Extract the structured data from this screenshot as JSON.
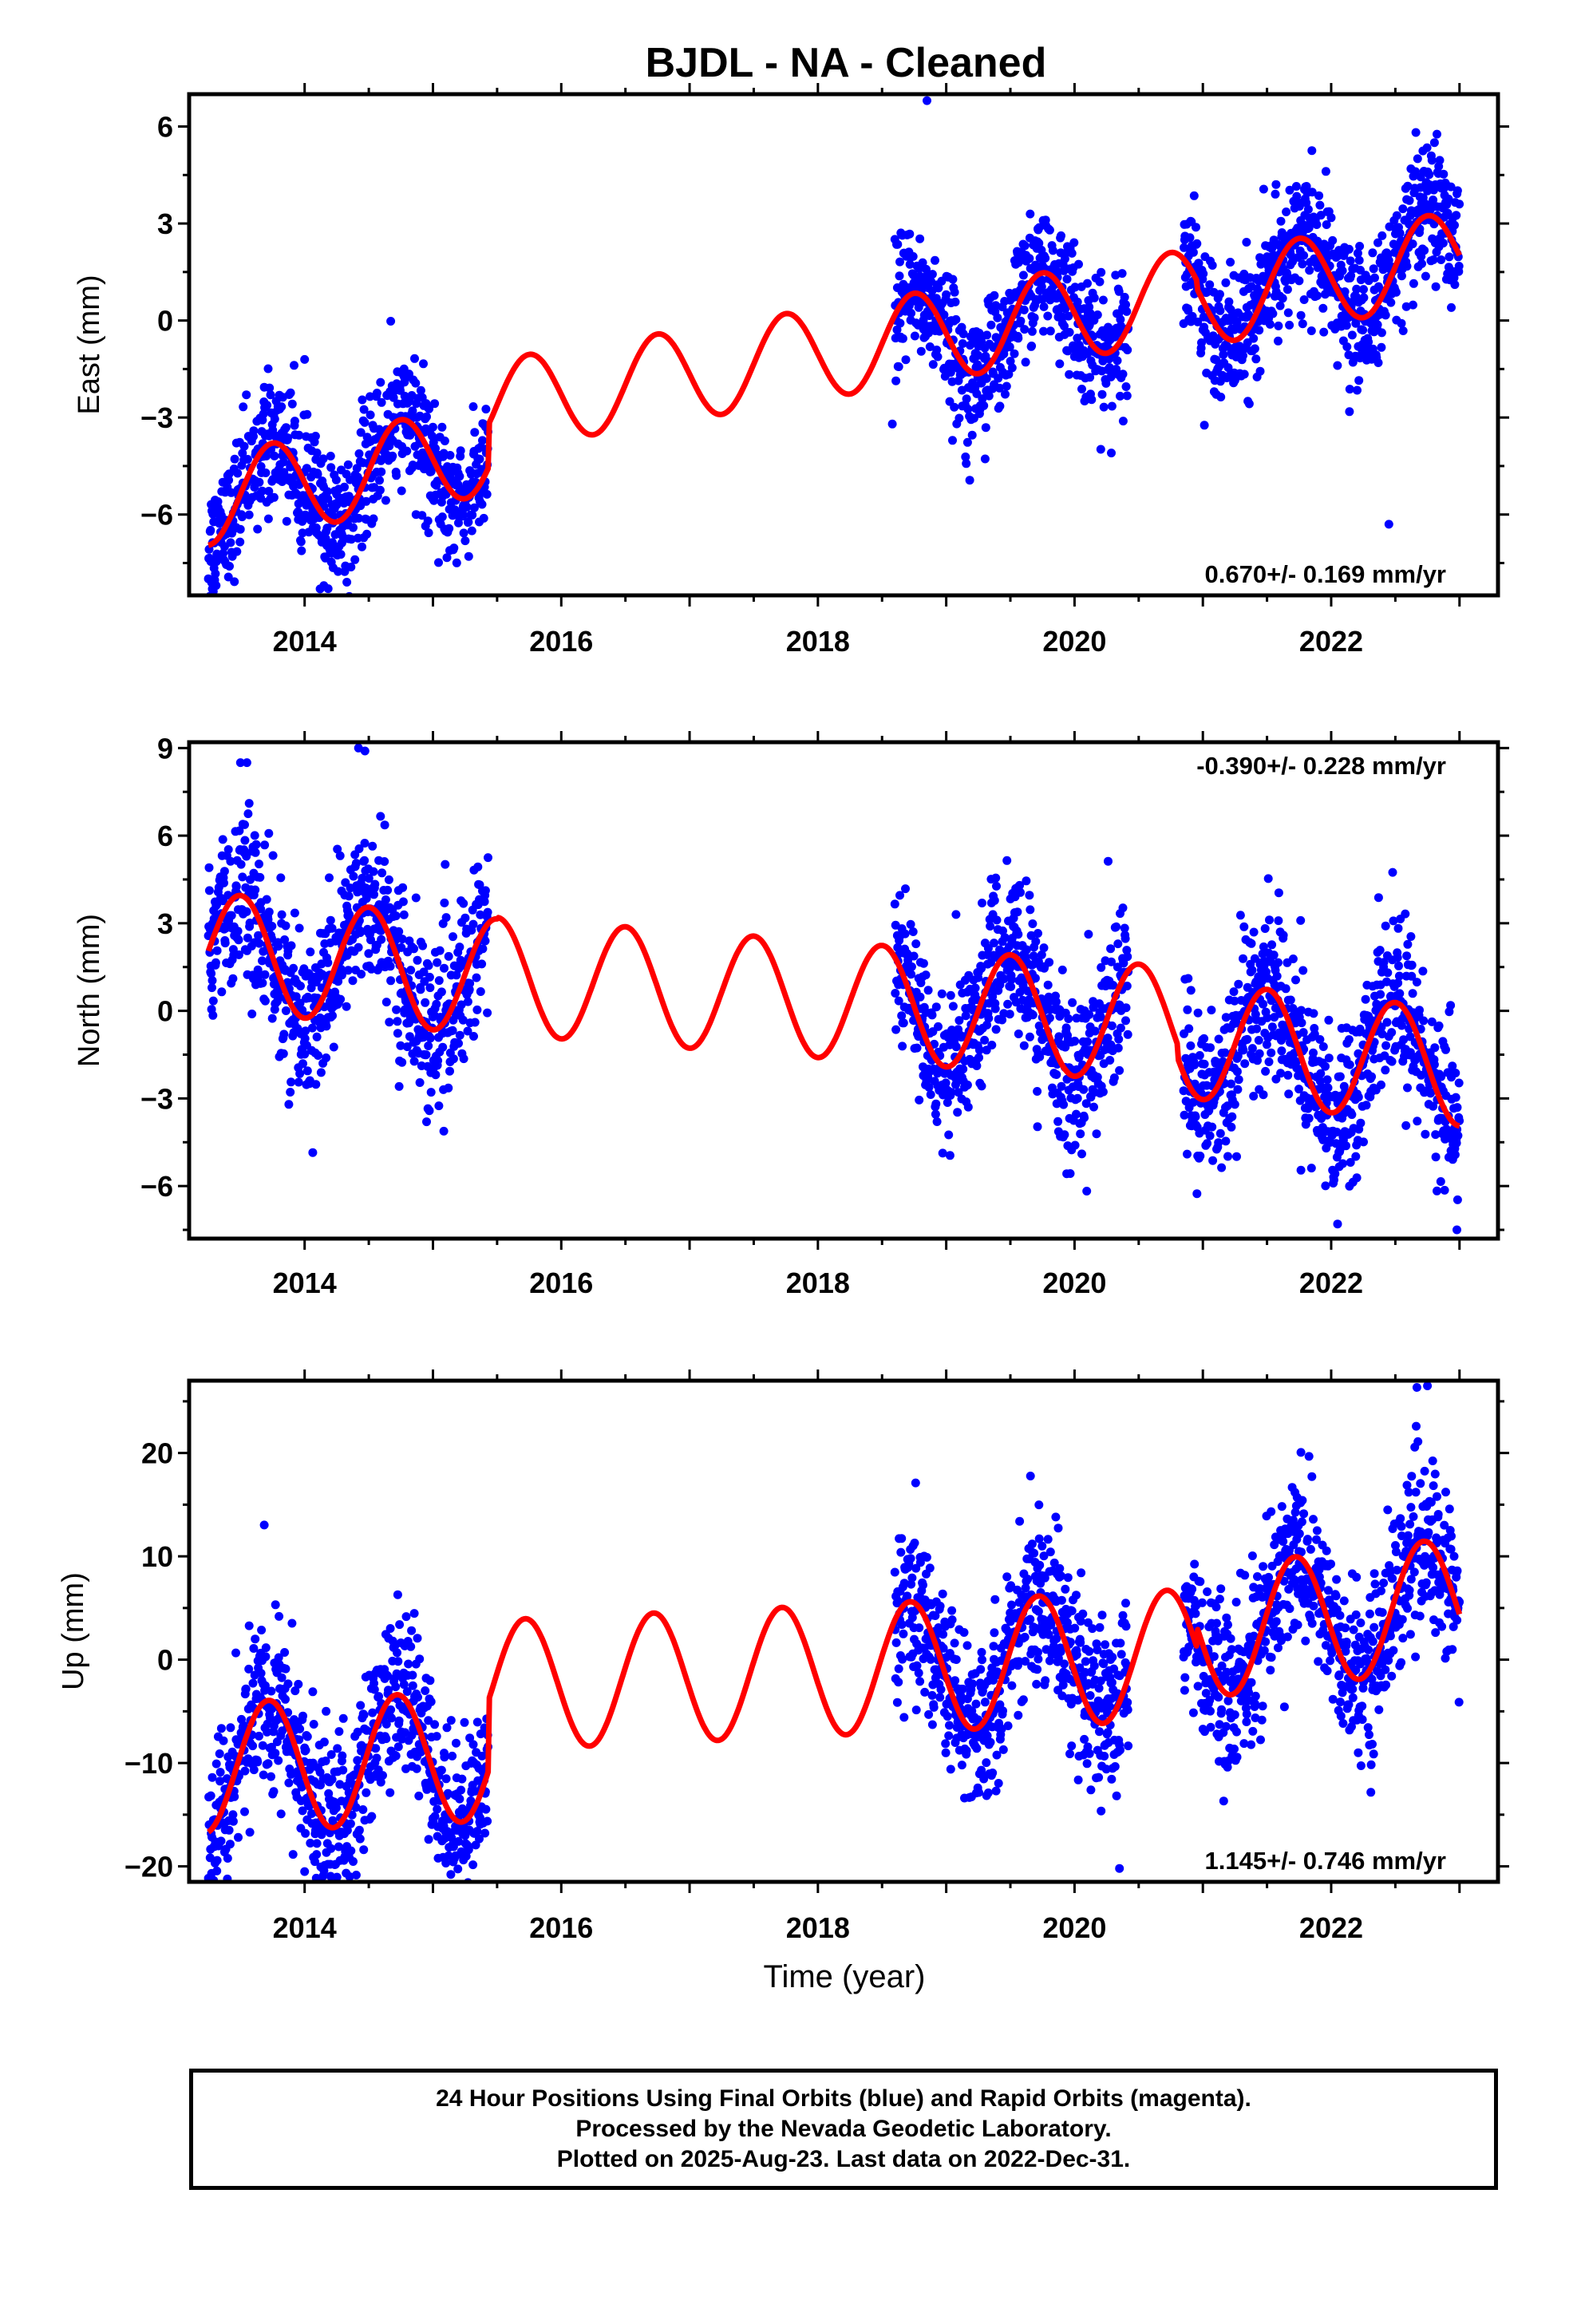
{
  "chart_data": {
    "type": "scatter",
    "title": "BJDL  - NA - Cleaned",
    "xlabel": "Time (year)",
    "x_ticks": [
      2014,
      2016,
      2018,
      2020,
      2022
    ],
    "colors": {
      "points": "#0000ff",
      "model": "#ff0000",
      "frame": "#000000"
    },
    "grid": false,
    "panels": [
      {
        "name": "east",
        "ylabel": "East (mm)",
        "ylim": [
          -8.5,
          7.0
        ],
        "xlim": [
          2013.1,
          2023.3
        ],
        "yticks": [
          6,
          3,
          0,
          -3,
          -6
        ],
        "ytick_labels": [
          "6",
          "3",
          "0",
          "−3",
          "−6"
        ],
        "rate": "0.670+/- 0.169 mm/yr",
        "rate_position": "bottom-right",
        "model": {
          "amplitude": 1.4,
          "phase_peak": 0.75,
          "segments": [
            {
              "x0": 2013.25,
              "x1": 2015.43,
              "offset": -5.55,
              "slope": 0.72
            },
            {
              "x0": 2015.43,
              "x1": 2020.95,
              "offset": -2.65,
              "slope": 0.63
            },
            {
              "x0": 2020.95,
              "x1": 2023.0,
              "offset": 0.58,
              "slope": 0.7
            }
          ]
        },
        "data_ranges": [
          [
            2013.25,
            2015.43
          ],
          [
            2018.6,
            2020.42
          ],
          [
            2020.85,
            2023.0
          ]
        ],
        "scatter_sigma": 1.0,
        "outliers": [
          [
            2018.85,
            6.8
          ],
          [
            2022.45,
            -6.3
          ],
          [
            2014.15,
            -8.2
          ],
          [
            2018.58,
            -3.2
          ]
        ]
      },
      {
        "name": "north",
        "ylabel": "North (mm)",
        "ylim": [
          -7.8,
          9.2
        ],
        "xlim": [
          2013.1,
          2023.3
        ],
        "yticks": [
          9,
          6,
          3,
          0,
          -3,
          -6
        ],
        "ytick_labels": [
          "9",
          "6",
          "3",
          "0",
          "−3",
          "−6"
        ],
        "rate": "-0.390+/- 0.228 mm/yr",
        "rate_position": "top-right",
        "model": {
          "amplitude": 2.0,
          "phase_peak": 0.5,
          "segments": [
            {
              "x0": 2013.25,
              "x1": 2015.5,
              "offset": 2.05,
              "slope": -0.4
            },
            {
              "x0": 2015.5,
              "x1": 2020.8,
              "offset": 1.2,
              "slope": -0.32
            },
            {
              "x0": 2020.8,
              "x1": 2023.0,
              "offset": -0.95,
              "slope": -0.45
            }
          ]
        },
        "data_ranges": [
          [
            2013.25,
            2015.43
          ],
          [
            2018.6,
            2020.42
          ],
          [
            2020.85,
            2023.0
          ]
        ],
        "scatter_sigma": 1.4,
        "outliers": [
          [
            2013.5,
            8.5
          ],
          [
            2013.55,
            8.5
          ],
          [
            2014.42,
            9.0
          ],
          [
            2014.47,
            8.9
          ],
          [
            2014.95,
            -3.8
          ],
          [
            2022.98,
            -7.5
          ],
          [
            2022.05,
            -7.3
          ]
        ]
      },
      {
        "name": "up",
        "ylabel": "Up (mm)",
        "ylim": [
          -21.5,
          27.0
        ],
        "xlim": [
          2013.1,
          2023.3
        ],
        "yticks": [
          20,
          10,
          0,
          -10,
          -20
        ],
        "ytick_labels": [
          "20",
          "10",
          "0",
          "−10",
          "−20"
        ],
        "rate": "1.145+/- 0.746 mm/yr",
        "rate_position": "bottom-right",
        "model": {
          "amplitude": 6.3,
          "phase_peak": 0.72,
          "segments": [
            {
              "x0": 2013.25,
              "x1": 2015.43,
              "offset": -10.5,
              "slope": 0.55
            },
            {
              "x0": 2015.43,
              "x1": 2020.95,
              "offset": -2.5,
              "slope": 0.55
            },
            {
              "x0": 2020.95,
              "x1": 2023.0,
              "offset": 2.5,
              "slope": 1.5
            }
          ]
        },
        "data_ranges": [
          [
            2013.25,
            2015.43
          ],
          [
            2018.6,
            2020.42
          ],
          [
            2020.85,
            2023.0
          ]
        ],
        "scatter_sigma": 4.0,
        "outliers": [
          [
            2022.75,
            26.5
          ],
          [
            2014.0,
            -20.5
          ],
          [
            2020.35,
            -20.2
          ],
          [
            2014.2,
            -19.8
          ]
        ]
      }
    ]
  },
  "footer": {
    "line1": "24 Hour Positions Using Final Orbits (blue) and Rapid Orbits (magenta).",
    "line2": "Processed by the Nevada Geodetic Laboratory.",
    "line3": "Plotted on 2025-Aug-23. Last data on 2022-Dec-31."
  }
}
